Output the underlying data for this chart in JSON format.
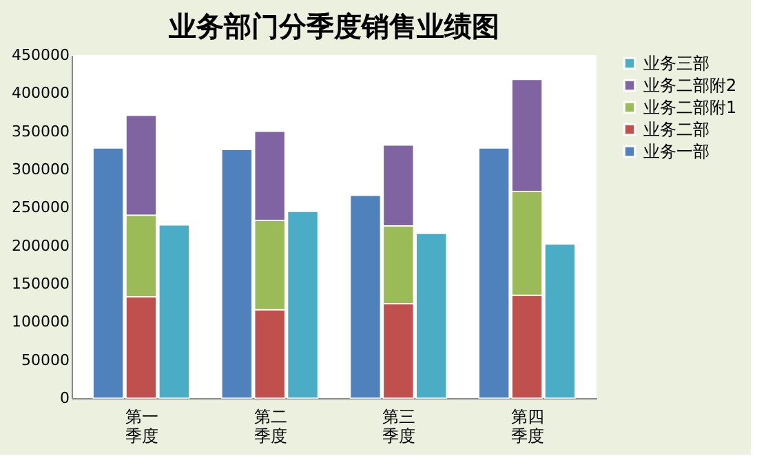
{
  "chart_data": {
    "type": "bar",
    "title": "业务部门分季度销售业绩图",
    "stacked": true,
    "categories": [
      null,
      "第一季度",
      null,
      null,
      "第二季度",
      null,
      null,
      "第三季度",
      null,
      null,
      "第四季度",
      null
    ],
    "series": [
      {
        "name": "业务一部",
        "color": "#4f81bd",
        "values": [
          328000,
          null,
          null,
          326000,
          null,
          null,
          266000,
          null,
          null,
          328000,
          null,
          null
        ]
      },
      {
        "name": "业务二部",
        "color": "#c0504d",
        "values": [
          null,
          133000,
          null,
          null,
          116000,
          null,
          null,
          124000,
          null,
          null,
          135000,
          null
        ]
      },
      {
        "name": "业务二部附1",
        "color": "#9bbb59",
        "values": [
          null,
          107000,
          null,
          null,
          117000,
          null,
          null,
          102000,
          null,
          null,
          136000,
          null
        ]
      },
      {
        "name": "业务二部附2",
        "color": "#8064a2",
        "values": [
          null,
          131000,
          null,
          null,
          117000,
          null,
          null,
          106000,
          null,
          null,
          147000,
          null
        ]
      },
      {
        "name": "业务三部",
        "color": "#4bacc6",
        "values": [
          null,
          null,
          227000,
          null,
          null,
          245000,
          null,
          null,
          216000,
          null,
          null,
          202000
        ]
      }
    ],
    "ylim": [
      0,
      450000
    ],
    "yticks": [
      0,
      50000,
      100000,
      150000,
      200000,
      250000,
      300000,
      350000,
      400000,
      450000
    ],
    "grid": false,
    "legend": "right"
  }
}
